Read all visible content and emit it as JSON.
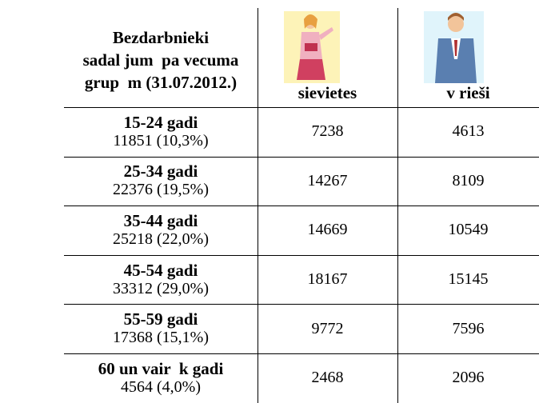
{
  "table": {
    "title_lines": [
      "Bezdarbnieki",
      "sadal jum  pa vecuma",
      "grup  m (31.07.2012.)"
    ],
    "columns": [
      "sievietes",
      "v rieši"
    ],
    "rows": [
      {
        "label": "15-24 gadi",
        "total": "11851 (10,3%)",
        "values": [
          "7238",
          "4613"
        ]
      },
      {
        "label": "25-34 gadi",
        "total": "22376 (19,5%)",
        "values": [
          "14267",
          "8109"
        ]
      },
      {
        "label": "35-44 gadi",
        "total": "25218 (22,0%)",
        "values": [
          "14669",
          "10549"
        ]
      },
      {
        "label": "45-54 gadi",
        "total": "33312 (29,0%)",
        "values": [
          "18167",
          "15145"
        ]
      },
      {
        "label": "55-59 gadi",
        "total": "17368 (15,1%)",
        "values": [
          "9772",
          "7596"
        ]
      },
      {
        "label": "60 un vair  k gadi",
        "total": "4564 (4,0%)",
        "values": [
          "2468",
          "2096"
        ]
      }
    ]
  }
}
